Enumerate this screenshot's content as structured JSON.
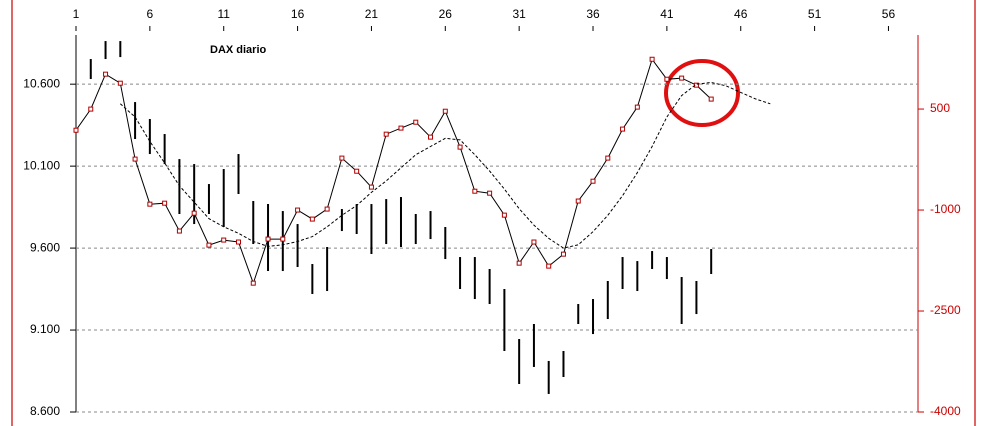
{
  "chart_data": {
    "type": "line",
    "title": "DAX diario",
    "x": [
      1,
      2,
      3,
      4,
      5,
      6,
      7,
      8,
      9,
      10,
      11,
      12,
      13,
      14,
      15,
      16,
      17,
      18,
      19,
      20,
      21,
      22,
      23,
      24,
      25,
      26,
      27,
      28,
      29,
      30,
      31,
      32,
      33,
      34,
      35,
      36,
      37,
      38,
      39,
      40,
      41,
      42,
      43,
      44,
      45,
      46,
      47,
      48
    ],
    "xlim": [
      1,
      58
    ],
    "xticks": [
      1,
      6,
      11,
      16,
      21,
      26,
      31,
      36,
      41,
      46,
      51,
      56
    ],
    "ylim": [
      8600,
      10900
    ],
    "yticks": [
      {
        "value": 8600,
        "label": "8.600"
      },
      {
        "value": 9100,
        "label": "9.100"
      },
      {
        "value": 9600,
        "label": "9.600"
      },
      {
        "value": 10100,
        "label": "10.100"
      },
      {
        "value": 10600,
        "label": "10.600"
      }
    ],
    "y2lim": [
      -4000,
      1600
    ],
    "y2ticks": [
      -4000,
      -2500,
      -1000,
      500
    ],
    "y2color": "#cc0000",
    "grid": true,
    "series": [
      {
        "color": "#000000",
        "style": "solid",
        "markers": true,
        "marker_color": "#b00000",
        "values": [
          10319,
          10448,
          10661,
          10606,
          10143,
          9868,
          9874,
          9704,
          9813,
          9618,
          9649,
          9637,
          9386,
          9655,
          9655,
          9832,
          9777,
          9838,
          10149,
          10069,
          9972,
          10295,
          10332,
          10368,
          10277,
          10435,
          10216,
          9947,
          9935,
          9801,
          9508,
          9637,
          9490,
          9563,
          9887,
          10008,
          10149,
          10326,
          10460,
          10752,
          10630,
          10637,
          10594,
          10509,
          null,
          null,
          null,
          null
        ]
      },
      {
        "color": "#000000",
        "style": "dashed",
        "markers": false,
        "values": [
          null,
          null,
          null,
          10480,
          10400,
          10250,
          10120,
          9980,
          9880,
          9780,
          9730,
          9690,
          9640,
          9610,
          9620,
          9640,
          9670,
          9730,
          9800,
          9860,
          9940,
          10010,
          10090,
          10170,
          10220,
          10270,
          10260,
          10170,
          10070,
          9960,
          9840,
          9740,
          9660,
          9600,
          9620,
          9700,
          9800,
          9920,
          10060,
          10220,
          10400,
          10530,
          10600,
          10610,
          10590,
          10550,
          10510,
          10480
        ]
      }
    ],
    "bars": {
      "axis": "y2",
      "color": "#000000",
      "low": [
        null,
        946,
        1243,
        1272,
        55,
        -168,
        -317,
        -1059,
        -1208,
        -1059,
        -1252,
        -762,
        -1505,
        -1906,
        -1906,
        -1846,
        -2247,
        -2203,
        -1312,
        -1356,
        -1653,
        -1505,
        -1549,
        -1505,
        -1431,
        -1728,
        -2173,
        -2322,
        -2396,
        -3094,
        -3584,
        -3331,
        -3732,
        -3480,
        -2693,
        -2842,
        -2619,
        -2173,
        -2203,
        -1876,
        -2025,
        -2693,
        -2545,
        -1950,
        null,
        null,
        null,
        null
      ],
      "high": [
        null,
        1243,
        1510,
        1510,
        604,
        352,
        129,
        -243,
        -317,
        -614,
        -391,
        -168,
        -866,
        -911,
        -1015,
        -1208,
        -1802,
        -1549,
        -985,
        -911,
        -911,
        -837,
        -807,
        -1059,
        -1015,
        -1252,
        -1698,
        -1698,
        -1876,
        -2173,
        -2916,
        -2693,
        -3242,
        -3094,
        -2396,
        -2322,
        -2054,
        -1698,
        -1758,
        -1609,
        -1698,
        -1995,
        -2054,
        -1579,
        null,
        null,
        null,
        null
      ]
    }
  }
}
